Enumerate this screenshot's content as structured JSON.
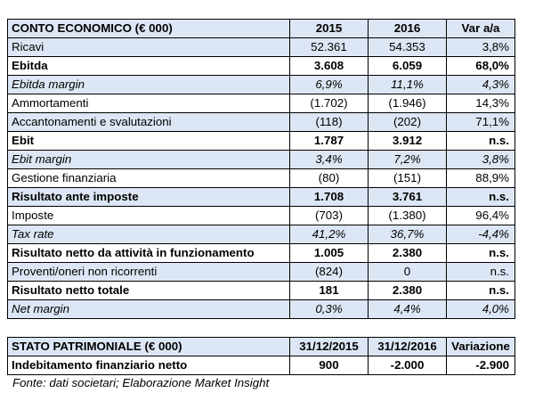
{
  "income_statement": {
    "header": [
      "CONTO ECONOMICO (€ 000)",
      "2015",
      "2016",
      "Var a/a"
    ],
    "rows": [
      {
        "label": "Ricavi",
        "v2015": "52.361",
        "v2016": "54.353",
        "var": "3,8%",
        "style": "shade"
      },
      {
        "label": "Ebitda",
        "v2015": "3.608",
        "v2016": "6.059",
        "var": "68,0%",
        "style": "bold"
      },
      {
        "label": "Ebitda margin",
        "v2015": "6,9%",
        "v2016": "11,1%",
        "var": "4,3%",
        "style": "shade italic"
      },
      {
        "label": "Ammortamenti",
        "v2015": "(1.702)",
        "v2016": "(1.946)",
        "var": "14,3%",
        "style": ""
      },
      {
        "label": "Accantonamenti e svalutazioni",
        "v2015": "(118)",
        "v2016": "(202)",
        "var": "71,1%",
        "style": "shade"
      },
      {
        "label": "Ebit",
        "v2015": "1.787",
        "v2016": "3.912",
        "var": "n.s.",
        "style": "bold"
      },
      {
        "label": "Ebit margin",
        "v2015": "3,4%",
        "v2016": "7,2%",
        "var": "3,8%",
        "style": "shade italic"
      },
      {
        "label": "Gestione finanziaria",
        "v2015": "(80)",
        "v2016": "(151)",
        "var": "88,9%",
        "style": ""
      },
      {
        "label": "Risultato ante imposte",
        "v2015": "1.708",
        "v2016": "3.761",
        "var": "n.s.",
        "style": "shade bold"
      },
      {
        "label": "Imposte",
        "v2015": "(703)",
        "v2016": "(1.380)",
        "var": "96,4%",
        "style": ""
      },
      {
        "label": "Tax rate",
        "v2015": "41,2%",
        "v2016": "36,7%",
        "var": "-4,4%",
        "style": "shade italic"
      },
      {
        "label": "Risultato netto da attività in funzionamento",
        "v2015": "1.005",
        "v2016": "2.380",
        "var": "n.s.",
        "style": "bold"
      },
      {
        "label": "Proventi/oneri non ricorrenti",
        "v2015": "(824)",
        "v2016": "0",
        "var": "n.s.",
        "style": "shade"
      },
      {
        "label": "Risultato netto totale",
        "v2015": "181",
        "v2016": "2.380",
        "var": "n.s.",
        "style": "bold"
      },
      {
        "label": "Net margin",
        "v2015": "0,3%",
        "v2016": "4,4%",
        "var": "4,0%",
        "style": "shade italic"
      }
    ]
  },
  "balance_sheet": {
    "header": [
      "STATO PATRIMONIALE (€ 000)",
      "31/12/2015",
      "31/12/2016",
      "Variazione"
    ],
    "rows": [
      {
        "label": "Indebitamento finanziario netto",
        "v2015": "900",
        "v2016": "-2.000",
        "var": "-2.900",
        "style": "bold"
      }
    ]
  },
  "source_note": "Fonte: dati societari; Elaborazione Market Insight"
}
